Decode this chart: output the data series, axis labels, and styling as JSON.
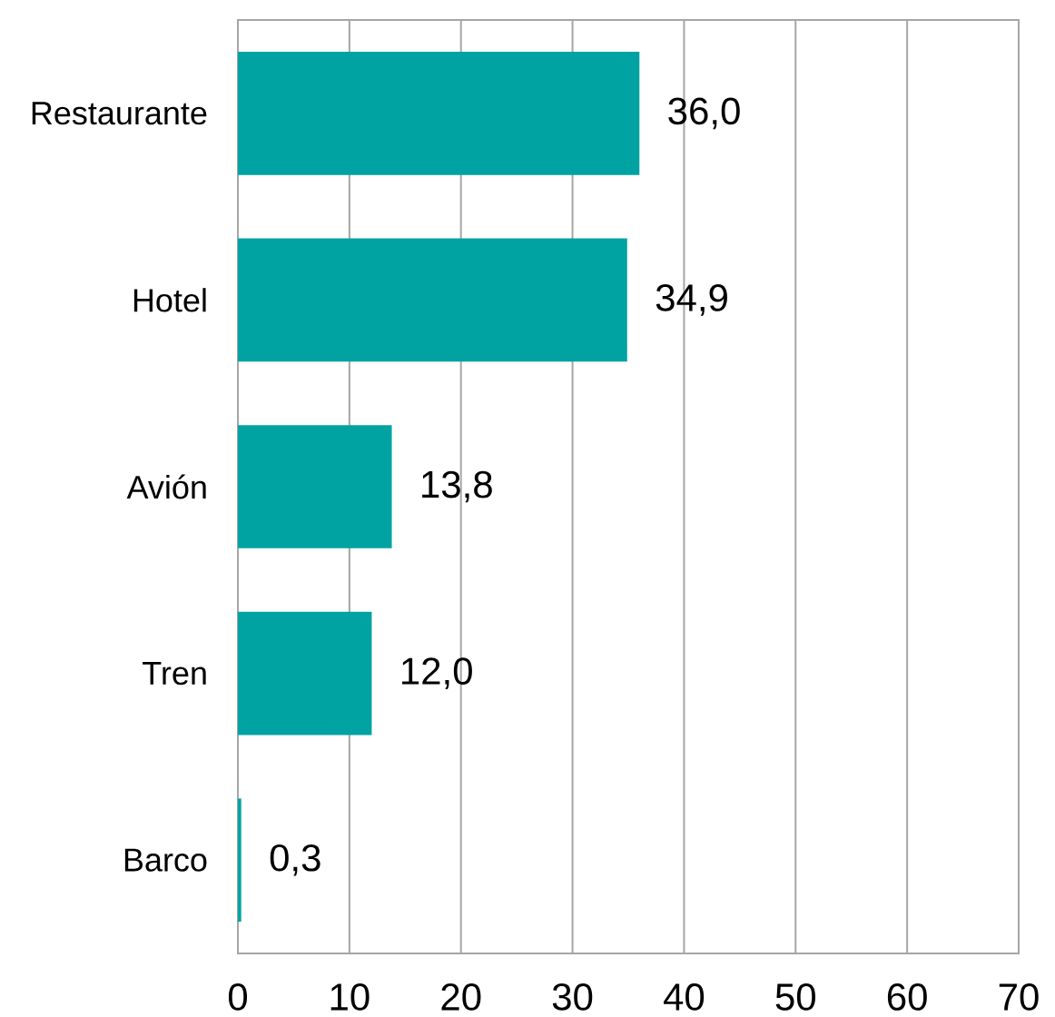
{
  "chart_data": {
    "type": "bar",
    "orientation": "horizontal",
    "categories": [
      "Restaurante",
      "Hotel",
      "Avión",
      "Tren",
      "Barco"
    ],
    "values": [
      36.0,
      34.9,
      13.8,
      12.0,
      0.3
    ],
    "value_labels": [
      "36,0",
      "34,9",
      "13,8",
      "12,0",
      "0,3"
    ],
    "color": "#00a2a2",
    "xlim": [
      0,
      70
    ],
    "xticks": [
      0,
      10,
      20,
      30,
      40,
      50,
      60,
      70
    ],
    "grid": "x"
  }
}
